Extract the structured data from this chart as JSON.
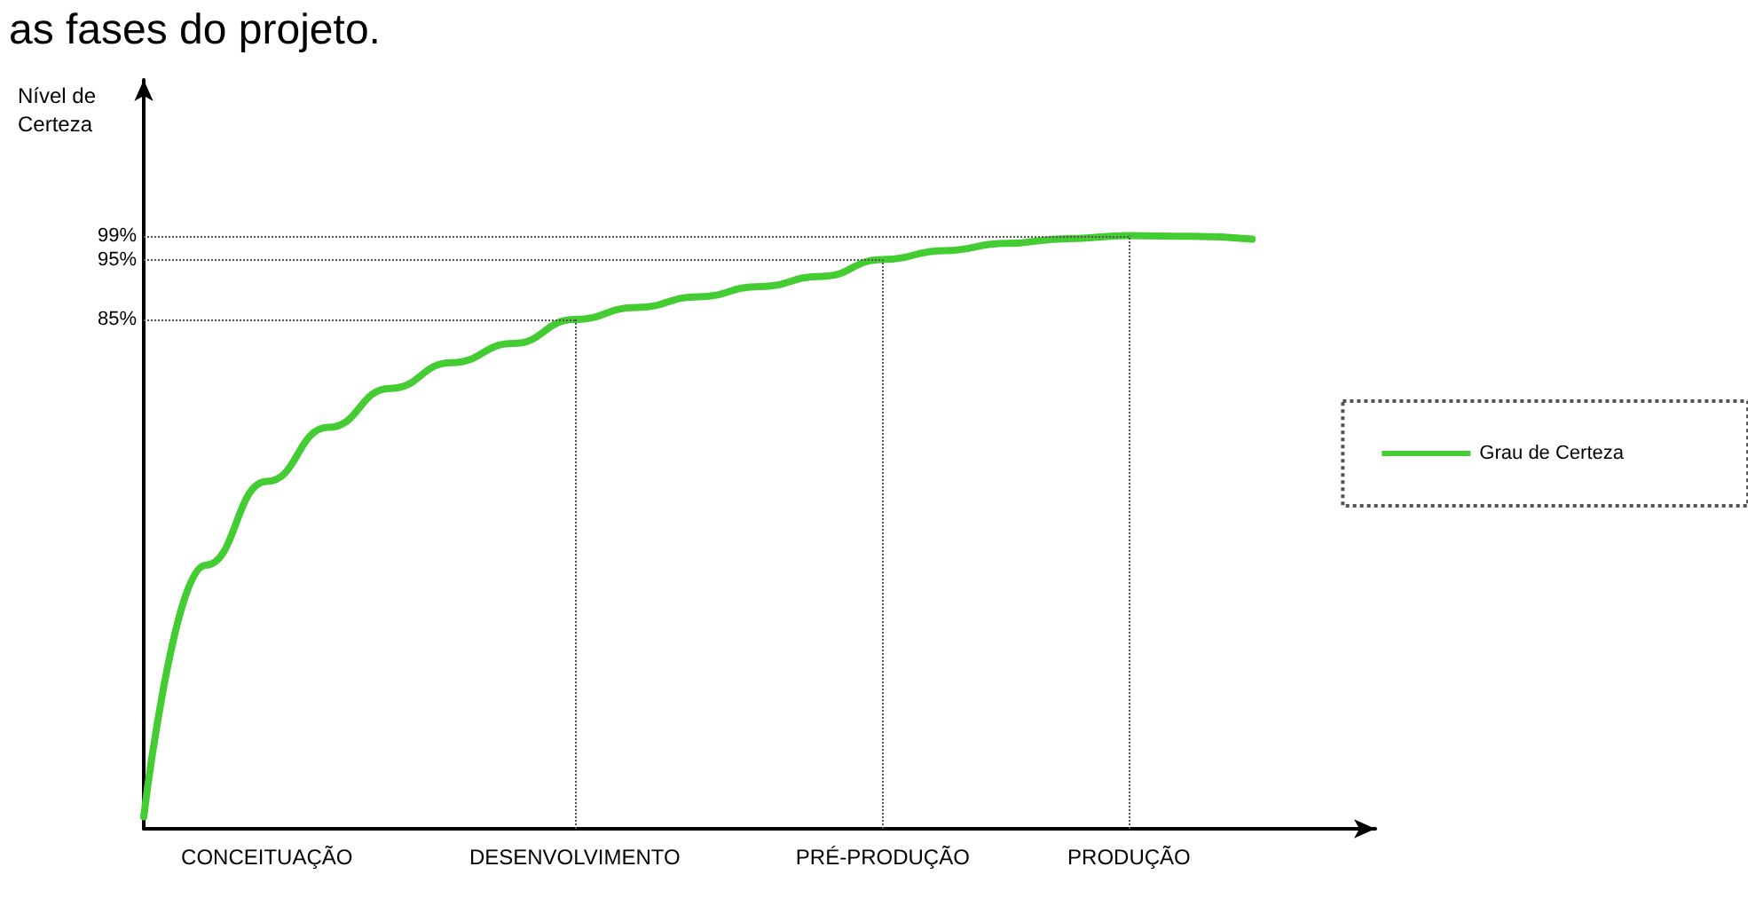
{
  "chart_data": {
    "type": "line",
    "title": "as fases do projeto.",
    "ylabel": "Nível de\nCerteza",
    "categories": [
      null,
      null,
      "CONCEITUAÇÃO",
      null,
      null,
      null,
      null,
      "DESENVOLVIMENTO",
      null,
      null,
      null,
      null,
      "PRÉ-PRODUÇÃO",
      null,
      null,
      null,
      "PRODUÇÃO",
      null,
      null,
      null,
      null
    ],
    "series": [
      {
        "name": "Grau de Certeza",
        "color": "#44cc33",
        "values": [
          2,
          44,
          58,
          67,
          73.5,
          77.8,
          81,
          85,
          87,
          88.8,
          90.5,
          92.2,
          95,
          96.5,
          97.7,
          98.5,
          99,
          98.9,
          98.4,
          null,
          null
        ]
      }
    ],
    "ylim": [
      0,
      125
    ],
    "yticks": [
      {
        "value": 85,
        "label": "85%"
      },
      {
        "value": 95,
        "label": "95%"
      },
      {
        "value": 99,
        "label": "99%"
      }
    ],
    "ref_lines": [
      {
        "axis": "y",
        "value": 85,
        "line_style": "dotted"
      },
      {
        "axis": "y",
        "value": 95,
        "line_style": "dotted"
      },
      {
        "axis": "y",
        "value": 99,
        "line_style": "dotted"
      },
      {
        "axis": "x",
        "value": "DESENVOLVIMENTO",
        "line_style": "dotted"
      },
      {
        "axis": "x",
        "value": "PRÉ-PRODUÇÃO",
        "line_style": "dotted"
      },
      {
        "axis": "x",
        "value": "PRODUÇÃO",
        "line_style": "dotted"
      }
    ],
    "legend": "right",
    "grid": false,
    "marker": "none",
    "line_style": "solid"
  }
}
